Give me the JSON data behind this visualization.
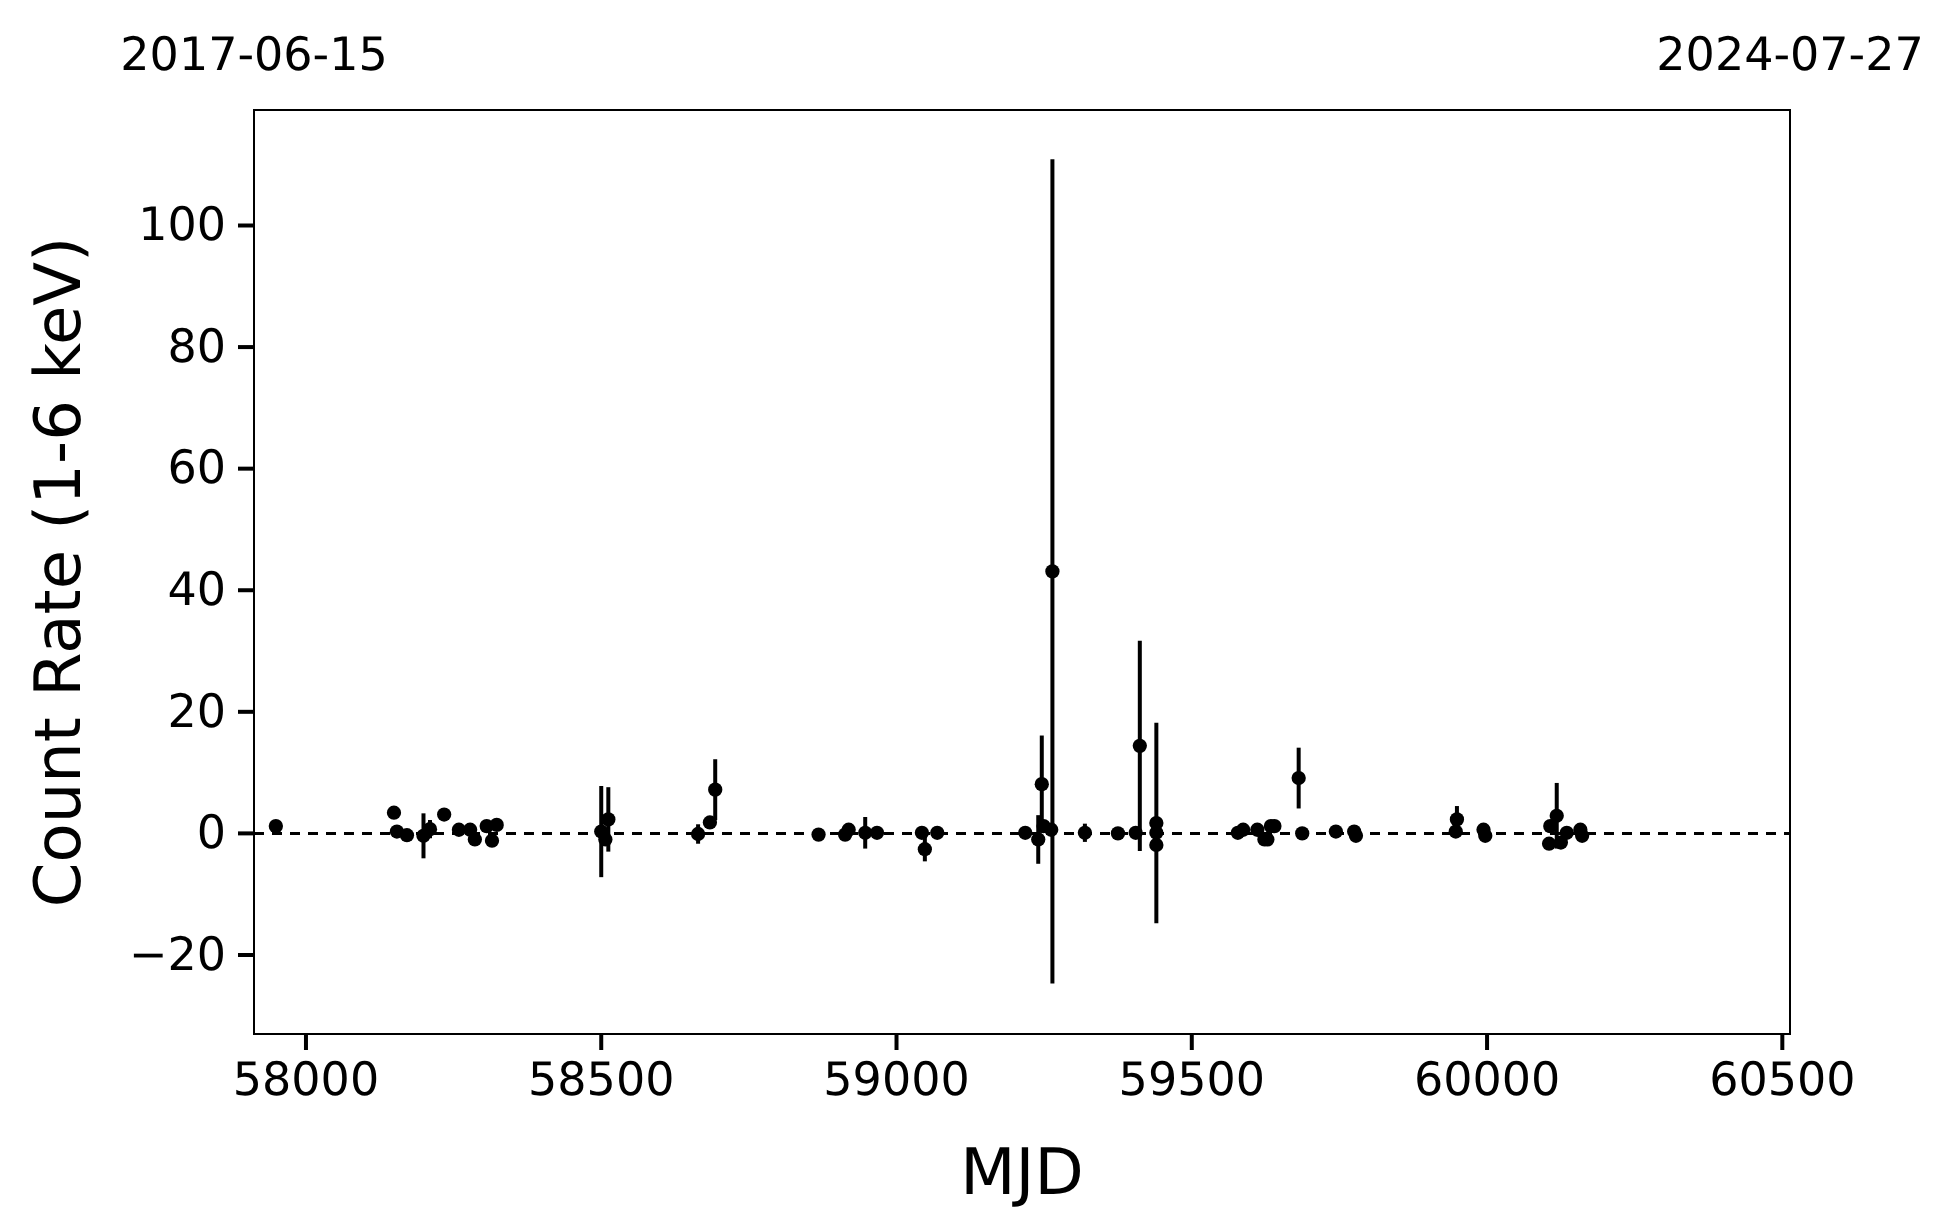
{
  "chart_data": {
    "type": "scatter",
    "xlabel": "MJD",
    "ylabel": "Count Rate (1-6 keV)",
    "xlim": [
      57912,
      60513
    ],
    "xticks": [
      58000,
      58500,
      59000,
      59500,
      60000,
      60500
    ],
    "x2lim": [
      "2017-06-15",
      "2024-07-27"
    ],
    "x2ticks": [
      "2017-06-15",
      "2024-07-27"
    ],
    "ylim": [
      -33,
      119
    ],
    "yticks": [
      {
        "value": -20,
        "label": "−20"
      },
      0,
      20,
      40,
      60,
      80,
      100
    ],
    "grid": false,
    "marker": "circle",
    "ref_lines": [
      {
        "axis": "y",
        "value": 0,
        "color": "#000000",
        "line_style": "dashed"
      }
    ],
    "series": [
      {
        "color": "#000000",
        "x": [
          57949,
          58149,
          58154,
          58171,
          58199,
          58210,
          58234,
          58259,
          58278,
          58286,
          58306,
          58315,
          58323,
          58500,
          58507,
          58512,
          58664,
          58684,
          58693,
          58868,
          58913,
          58919,
          58947,
          58967,
          59043,
          59048,
          59069,
          59218,
          59240,
          59246,
          59249,
          59262,
          59264,
          59319,
          59375,
          59405,
          59412,
          59440,
          59440,
          59440,
          59578,
          59587,
          59611,
          59623,
          59628,
          59634,
          59640,
          59681,
          59687,
          59744,
          59775,
          59778,
          59947,
          59949,
          59994,
          59997,
          60105,
          60107,
          60118,
          60125,
          60135,
          60158,
          60161
        ],
        "values": [
          1.2,
          3.4,
          0.3,
          -0.3,
          -0.4,
          0.7,
          3.1,
          0.6,
          0.6,
          -1.0,
          1.2,
          -1.2,
          1.4,
          0.3,
          -1.0,
          2.3,
          -0.1,
          1.8,
          7.2,
          -0.2,
          -0.2,
          0.6,
          0.1,
          0.1,
          0.1,
          -2.6,
          0.1,
          0.1,
          -1.0,
          8.1,
          1.2,
          0.6,
          43.1,
          0.1,
          0.0,
          0.1,
          14.4,
          1.7,
          0.1,
          -1.9,
          0.1,
          0.6,
          0.6,
          -1.0,
          -1.0,
          1.2,
          1.2,
          9.1,
          0.0,
          0.3,
          0.3,
          -0.4,
          0.3,
          2.3,
          0.6,
          -0.4,
          -1.7,
          1.2,
          2.9,
          -1.5,
          0.1,
          0.6,
          -0.4
        ],
        "errors": [
          null,
          null,
          null,
          null,
          3.7,
          1.5,
          null,
          null,
          null,
          null,
          null,
          null,
          null,
          7.5,
          null,
          5.3,
          1.6,
          null,
          5.0,
          null,
          null,
          null,
          2.6,
          null,
          null,
          2.0,
          null,
          null,
          4.0,
          8.0,
          null,
          null,
          67.8,
          1.5,
          null,
          null,
          17.3,
          16.5,
          null,
          null,
          null,
          null,
          null,
          null,
          null,
          null,
          null,
          5.0,
          null,
          null,
          null,
          null,
          null,
          2.2,
          null,
          null,
          null,
          null,
          5.4,
          null,
          null,
          null,
          null
        ]
      }
    ]
  }
}
